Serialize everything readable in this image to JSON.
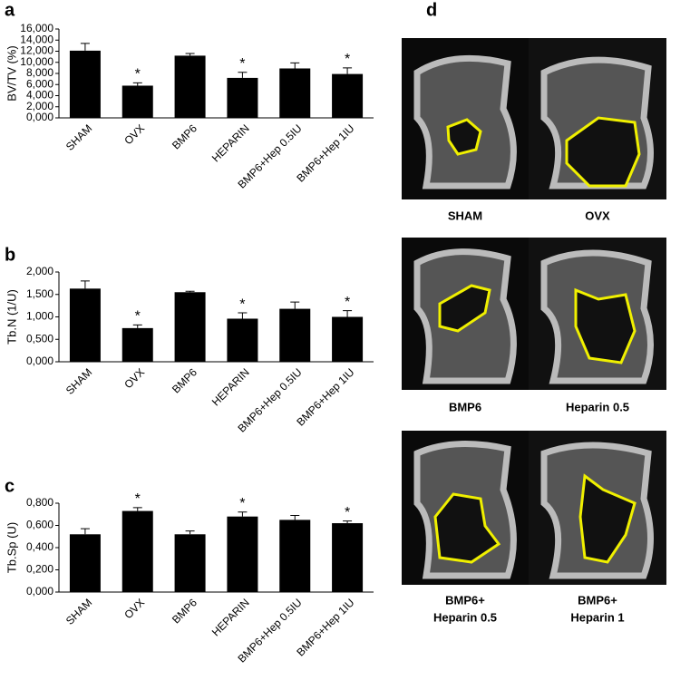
{
  "chart_data": [
    {
      "type": "bar",
      "panel": "a",
      "ylabel": "BV/TV (%)",
      "categories": [
        "SHAM",
        "OVX",
        "BMP6",
        "HEPARIN",
        "BMP6+Hep 0.5IU",
        "BMP6+Hep 1IU"
      ],
      "values": [
        12.1,
        5.8,
        11.2,
        7.2,
        8.9,
        7.9
      ],
      "errors": [
        1.3,
        0.5,
        0.4,
        1.0,
        1.0,
        1.1
      ],
      "color": "#000000",
      "ylim": [
        0,
        16
      ],
      "yticks": [
        {
          "value": 0,
          "label": "0,000"
        },
        {
          "value": 2,
          "label": "2,000"
        },
        {
          "value": 4,
          "label": "4,000"
        },
        {
          "value": 6,
          "label": "6,000"
        },
        {
          "value": 8,
          "label": "8,000"
        },
        {
          "value": 10,
          "label": "10,000"
        },
        {
          "value": 12,
          "label": "12,000"
        },
        {
          "value": 14,
          "label": "14,000"
        },
        {
          "value": 16,
          "label": "16,000"
        }
      ],
      "annotations": [
        {
          "index": 1,
          "text": "*"
        },
        {
          "index": 3,
          "text": "*"
        },
        {
          "index": 5,
          "text": "*"
        }
      ]
    },
    {
      "type": "bar",
      "panel": "b",
      "ylabel": "Tb.N (1/U)",
      "categories": [
        "SHAM",
        "OVX",
        "BMP6",
        "HEPARIN",
        "BMP6+Hep 0.5IU",
        "BMP6+Hep 1IU"
      ],
      "values": [
        1.63,
        0.75,
        1.55,
        0.96,
        1.18,
        1.0
      ],
      "errors": [
        0.17,
        0.07,
        0.02,
        0.13,
        0.15,
        0.14
      ],
      "color": "#000000",
      "ylim": [
        0,
        2
      ],
      "yticks": [
        {
          "value": 0,
          "label": "0,000"
        },
        {
          "value": 0.5,
          "label": "0,500"
        },
        {
          "value": 1,
          "label": "1,000"
        },
        {
          "value": 1.5,
          "label": "1,500"
        },
        {
          "value": 2,
          "label": "2,000"
        }
      ],
      "annotations": [
        {
          "index": 1,
          "text": "*"
        },
        {
          "index": 3,
          "text": "*"
        },
        {
          "index": 5,
          "text": "*"
        }
      ]
    },
    {
      "type": "bar",
      "panel": "c",
      "ylabel": "Tb.Sp (U)",
      "categories": [
        "SHAM",
        "OVX",
        "BMP6",
        "HEPARIN",
        "BMP6+Hep 0.5IU",
        "BMP6+Hep 1IU"
      ],
      "values": [
        0.52,
        0.73,
        0.52,
        0.68,
        0.65,
        0.62
      ],
      "errors": [
        0.05,
        0.03,
        0.03,
        0.04,
        0.04,
        0.02
      ],
      "color": "#000000",
      "ylim": [
        0,
        0.8
      ],
      "yticks": [
        {
          "value": 0,
          "label": "0,000"
        },
        {
          "value": 0.2,
          "label": "0,200"
        },
        {
          "value": 0.4,
          "label": "0,400"
        },
        {
          "value": 0.6,
          "label": "0,600"
        },
        {
          "value": 0.8,
          "label": "0,800"
        }
      ],
      "annotations": [
        {
          "index": 1,
          "text": "*"
        },
        {
          "index": 3,
          "text": "*"
        },
        {
          "index": 5,
          "text": "*"
        }
      ]
    }
  ],
  "panel_d": {
    "panel": "d",
    "images": [
      {
        "label": [
          "SHAM"
        ]
      },
      {
        "label": [
          "OVX"
        ]
      },
      {
        "label": [
          "BMP6"
        ]
      },
      {
        "label": [
          "Heparin 0.5"
        ]
      },
      {
        "label": [
          "BMP6+",
          "Heparin 0.5"
        ]
      },
      {
        "label": [
          "BMP6+",
          "Heparin 1"
        ]
      }
    ]
  }
}
